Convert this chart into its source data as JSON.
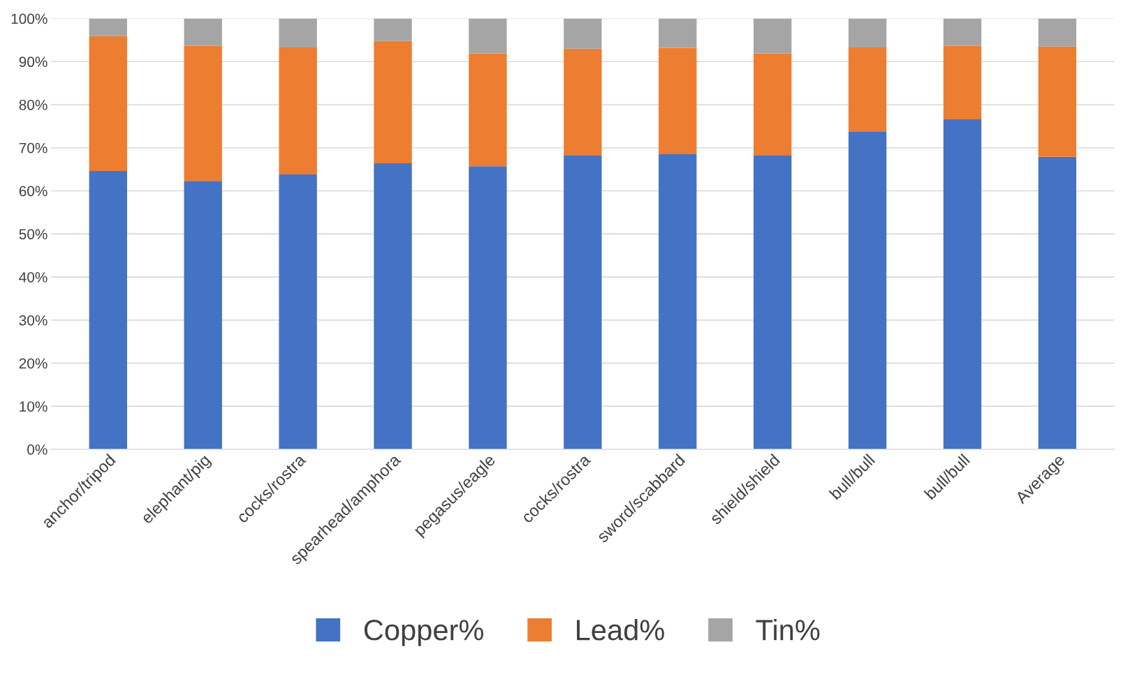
{
  "chart_data": {
    "type": "bar",
    "stacked": true,
    "categories": [
      "anchor/tripod",
      "elephant/pig",
      "cocks/rostra",
      "spearhead/amphora",
      "pegasus/eagle",
      "cocks/rostra",
      "sword/scabbard",
      "shield/shield",
      "bull/bull",
      "bull/bull",
      "Average"
    ],
    "series": [
      {
        "name": "Copper%",
        "color": "#4472c4",
        "values": [
          64.6,
          62.3,
          63.8,
          66.4,
          65.7,
          68.3,
          68.5,
          68.3,
          73.7,
          76.6,
          67.9
        ]
      },
      {
        "name": "Lead%",
        "color": "#ed7d31",
        "values": [
          31.3,
          31.4,
          29.5,
          28.4,
          26.2,
          24.7,
          24.7,
          23.6,
          19.6,
          17.1,
          25.6
        ]
      },
      {
        "name": "Tin%",
        "color": "#a5a5a5",
        "values": [
          4.1,
          6.3,
          6.7,
          5.2,
          8.1,
          7.0,
          6.8,
          8.1,
          6.7,
          6.3,
          6.5
        ]
      }
    ],
    "ylim": [
      0,
      100
    ],
    "yticks": [
      {
        "value": 0,
        "label": "0%"
      },
      {
        "value": 10,
        "label": "10%"
      },
      {
        "value": 20,
        "label": "20%"
      },
      {
        "value": 30,
        "label": "30%"
      },
      {
        "value": 40,
        "label": "40%"
      },
      {
        "value": 50,
        "label": "50%"
      },
      {
        "value": 60,
        "label": "60%"
      },
      {
        "value": 70,
        "label": "70%"
      },
      {
        "value": 80,
        "label": "80%"
      },
      {
        "value": 90,
        "label": "90%"
      },
      {
        "value": 100,
        "label": "100%"
      }
    ],
    "grid": "y",
    "legend": "bottom"
  }
}
